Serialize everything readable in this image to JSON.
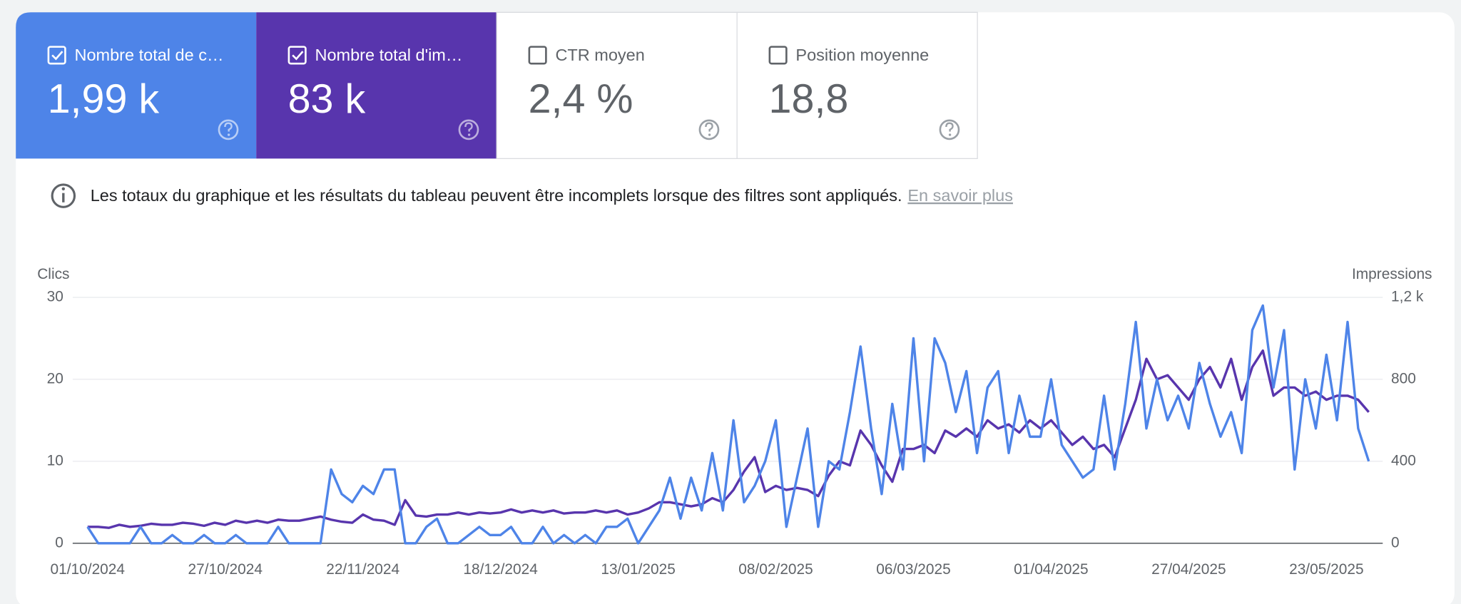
{
  "metrics": [
    {
      "value": "1,99 k",
      "checked": true,
      "color": "#4e84e8"
    },
    {
      "value": "83 k",
      "checked": true,
      "color": "#5835ad"
    },
    {
      "label": "CTR moyen",
      "value": "2,4 %",
      "checked": false
    },
    {
      "label": "Position moyenne",
      "value": "18,8",
      "checked": false
    }
  ],
  "notice": {
    "text": "Les totaux du graphique et les résultats du tableau peuvent être incomplets lorsque des filtres sont appliqués.",
    "link": "En savoir plus"
  },
  "chart_data": {
    "type": "line",
    "y_label": "Clics",
    "y2_label": "Impressions",
    "categories": [
      "01/10/2024",
      null,
      null,
      null,
      null,
      null,
      null,
      null,
      null,
      null,
      null,
      null,
      null,
      "27/10/2024",
      null,
      null,
      null,
      null,
      null,
      null,
      null,
      null,
      null,
      null,
      null,
      null,
      "22/11/2024",
      null,
      null,
      null,
      null,
      null,
      null,
      null,
      null,
      null,
      null,
      null,
      null,
      "18/12/2024",
      null,
      null,
      null,
      null,
      null,
      null,
      null,
      null,
      null,
      null,
      null,
      null,
      "13/01/2025",
      null,
      null,
      null,
      null,
      null,
      null,
      null,
      null,
      null,
      null,
      null,
      null,
      "08/02/2025",
      null,
      null,
      null,
      null,
      null,
      null,
      null,
      null,
      null,
      null,
      null,
      null,
      "06/03/2025",
      null,
      null,
      null,
      null,
      null,
      null,
      null,
      null,
      null,
      null,
      null,
      null,
      "01/04/2025",
      null,
      null,
      null,
      null,
      null,
      null,
      null,
      null,
      null,
      null,
      null,
      null,
      "27/04/2025",
      null,
      null,
      null,
      null,
      null,
      null,
      null,
      null,
      null,
      null,
      null,
      null,
      "23/05/2025",
      null,
      null,
      null,
      null
    ],
    "series": [
      {
        "name": "Nombre total de c…",
        "color": "#4e84e8",
        "values": [
          2,
          0,
          0,
          0,
          0,
          2,
          0,
          0,
          1,
          0,
          0,
          1,
          0,
          0,
          1,
          0,
          0,
          0,
          2,
          0,
          0,
          0,
          0,
          9,
          6,
          5,
          7,
          6,
          9,
          9,
          0,
          0,
          2,
          3,
          0,
          0,
          1,
          2,
          1,
          1,
          2,
          0,
          0,
          2,
          0,
          1,
          0,
          1,
          0,
          2,
          2,
          3,
          0,
          2,
          4,
          8,
          3,
          8,
          4,
          11,
          4,
          15,
          5,
          7,
          10,
          15,
          2,
          8,
          14,
          2,
          10,
          9,
          16,
          24,
          14,
          6,
          17,
          9,
          25,
          10,
          25,
          22,
          16,
          21,
          11,
          19,
          21,
          11,
          18,
          13,
          13,
          20,
          12,
          10,
          8,
          9,
          18,
          9,
          17,
          27,
          14,
          20,
          15,
          18,
          14,
          22,
          17,
          13,
          16,
          11,
          26,
          29,
          19,
          26,
          9,
          20,
          14,
          23,
          15,
          27,
          14,
          10
        ]
      },
      {
        "name": "Nombre total d'im…",
        "color": "#5835ad",
        "axis": "y2",
        "values": [
          80,
          80,
          75,
          90,
          80,
          85,
          95,
          90,
          90,
          100,
          95,
          85,
          100,
          90,
          110,
          100,
          110,
          100,
          115,
          110,
          110,
          120,
          130,
          115,
          105,
          100,
          140,
          115,
          110,
          90,
          210,
          135,
          130,
          140,
          140,
          150,
          140,
          150,
          145,
          150,
          165,
          150,
          160,
          150,
          160,
          145,
          150,
          150,
          160,
          150,
          160,
          140,
          150,
          170,
          200,
          200,
          190,
          180,
          190,
          220,
          200,
          260,
          350,
          420,
          250,
          280,
          260,
          270,
          260,
          230,
          330,
          400,
          380,
          550,
          480,
          380,
          300,
          460,
          460,
          480,
          440,
          550,
          520,
          560,
          520,
          600,
          560,
          580,
          540,
          600,
          560,
          600,
          540,
          480,
          520,
          460,
          480,
          420,
          560,
          700,
          900,
          800,
          820,
          760,
          700,
          800,
          860,
          760,
          900,
          700,
          860,
          940,
          720,
          760,
          760,
          720,
          740,
          700,
          720,
          720,
          700,
          640
        ]
      }
    ],
    "ylim": [
      0,
      30
    ],
    "yticks": [
      0,
      10,
      20,
      30
    ],
    "y2lim": [
      0,
      1200
    ],
    "y2ticks": [
      0,
      400,
      800,
      {
        "value": 1200,
        "label": "1,2 k"
      }
    ],
    "grid": true
  }
}
